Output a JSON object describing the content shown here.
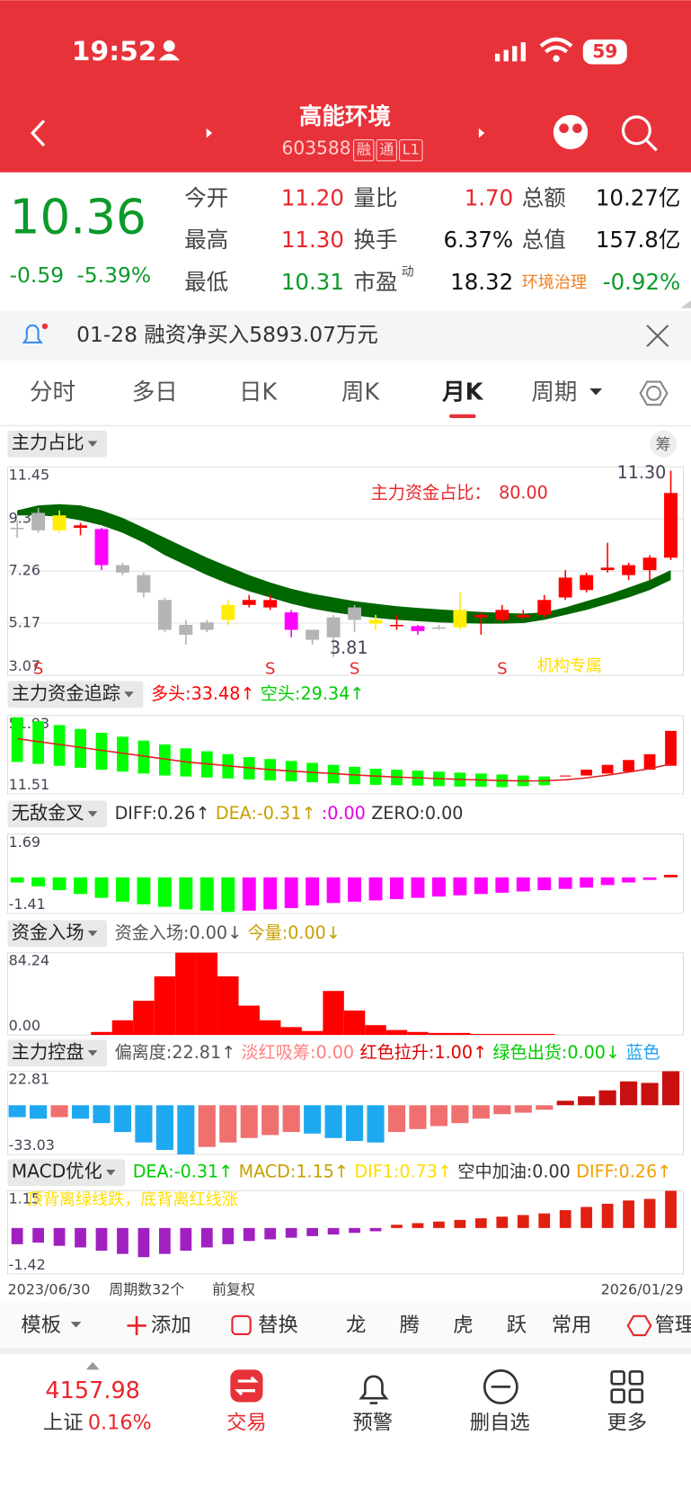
{
  "status_bar": {
    "time": "19:52",
    "battery": "59"
  },
  "header": {
    "title": "高能环境",
    "code": "603588",
    "badges": [
      "融",
      "通",
      "L1"
    ]
  },
  "quote": {
    "price": "10.36",
    "change": "-0.59",
    "change_pct": "-5.39%",
    "fields": [
      {
        "label": "今开",
        "value": "11.20",
        "color": "#e8262c"
      },
      {
        "label": "量比",
        "value": "1.70",
        "color": "#e8262c"
      },
      {
        "label": "总额",
        "value": "10.27亿",
        "color": "#111111"
      },
      {
        "label": "最高",
        "value": "11.30",
        "color": "#e8262c"
      },
      {
        "label": "换手",
        "value": "6.37%",
        "color": "#111111"
      },
      {
        "label": "总值",
        "value": "157.8亿",
        "color": "#111111"
      },
      {
        "label": "最低",
        "value": "10.31",
        "color": "#0a9a2a"
      },
      {
        "label": "市盈",
        "sup": "动",
        "value": "18.32",
        "color": "#111111"
      },
      {
        "label": "环境治理",
        "value": "-0.92%",
        "color": "#0a9a2a"
      }
    ]
  },
  "notice": {
    "text": "01-28 融资净买入5893.07万元"
  },
  "tabs": {
    "items": [
      "分时",
      "多日",
      "日K",
      "周K",
      "月K",
      "周期"
    ],
    "active_index": 4
  },
  "main_chart": {
    "title": "主力占比",
    "badge": "筹",
    "annotation_label": "主力资金占比：",
    "annotation_value": "80.00",
    "max_label": "11.30",
    "min_label": "3.81",
    "tag": "机构专属",
    "ylim": [
      3.07,
      11.45
    ],
    "yticks": [
      11.45,
      9.36,
      7.26,
      5.17,
      3.07
    ],
    "candles": [
      [
        9.0,
        8.95,
        9.3,
        8.6
      ],
      [
        9.6,
        8.9,
        9.8,
        8.8
      ],
      [
        8.9,
        9.5,
        9.7,
        8.8
      ],
      [
        9.1,
        9.0,
        9.2,
        8.7
      ],
      [
        8.95,
        7.5,
        9.0,
        7.3
      ],
      [
        7.5,
        7.2,
        7.6,
        7.1
      ],
      [
        7.1,
        6.4,
        7.2,
        6.2
      ],
      [
        6.1,
        4.9,
        6.2,
        4.8
      ],
      [
        5.1,
        4.7,
        5.3,
        4.3
      ],
      [
        5.2,
        4.9,
        5.3,
        4.8
      ],
      [
        5.3,
        5.9,
        6.1,
        5.1
      ],
      [
        5.9,
        6.1,
        6.3,
        5.8
      ],
      [
        6.1,
        5.8,
        6.3,
        5.7
      ],
      [
        5.6,
        4.9,
        5.7,
        4.6
      ],
      [
        4.9,
        4.5,
        4.9,
        4.3
      ],
      [
        4.6,
        5.4,
        5.5,
        3.81
      ],
      [
        5.3,
        5.8,
        5.9,
        4.8
      ],
      [
        5.3,
        5.15,
        5.5,
        4.9
      ],
      [
        5.1,
        5.05,
        5.5,
        4.9
      ],
      [
        5.05,
        4.85,
        5.1,
        4.7
      ],
      [
        5.0,
        5.0,
        5.1,
        4.9
      ],
      [
        5.0,
        5.7,
        6.4,
        4.9
      ],
      [
        5.4,
        5.5,
        5.6,
        4.7
      ],
      [
        5.3,
        5.7,
        5.9,
        5.2
      ],
      [
        5.4,
        5.5,
        5.7,
        5.3
      ],
      [
        5.5,
        6.1,
        6.3,
        5.4
      ],
      [
        6.2,
        7.0,
        7.3,
        6.1
      ],
      [
        6.5,
        7.1,
        7.2,
        6.4
      ],
      [
        7.3,
        7.4,
        8.4,
        7.2
      ],
      [
        7.1,
        7.5,
        7.6,
        6.9
      ],
      [
        7.3,
        7.8,
        7.9,
        6.9
      ],
      [
        7.8,
        10.4,
        11.3,
        7.7
      ]
    ],
    "candle_colors": [
      "#b4b4b4",
      "#b4b4b4",
      "#ffee00",
      "#ff0000",
      "#ff00ff",
      "#b4b4b4",
      "#b4b4b4",
      "#b4b4b4",
      "#b4b4b4",
      "#b4b4b4",
      "#ffee00",
      "#ff0000",
      "#ff0000",
      "#ff00ff",
      "#b4b4b4",
      "#b4b4b4",
      "#b4b4b4",
      "#ffee00",
      "#ff0000",
      "#ff00ff",
      "#b4b4b4",
      "#ffee00",
      "#ff0000",
      "#ff0000",
      "#ff0000",
      "#ff0000",
      "#ff0000",
      "#ff0000",
      "#ff0000",
      "#ff0000",
      "#ff0000",
      "#ff0000"
    ],
    "band_upper": [
      9.7,
      9.9,
      9.95,
      9.9,
      9.7,
      9.4,
      9.0,
      8.6,
      8.2,
      7.8,
      7.45,
      7.1,
      6.8,
      6.55,
      6.35,
      6.2,
      6.05,
      5.95,
      5.85,
      5.78,
      5.72,
      5.67,
      5.62,
      5.58,
      5.55,
      5.6,
      5.8,
      6.05,
      6.3,
      6.6,
      6.9,
      7.3
    ],
    "band_lower": [
      9.5,
      9.5,
      9.45,
      9.3,
      9.1,
      8.8,
      8.4,
      7.9,
      7.5,
      7.1,
      6.75,
      6.45,
      6.2,
      5.95,
      5.75,
      5.6,
      5.48,
      5.38,
      5.3,
      5.25,
      5.2,
      5.17,
      5.15,
      5.15,
      5.17,
      5.3,
      5.5,
      5.7,
      5.95,
      6.2,
      6.5,
      6.9
    ],
    "band_color": "#006600",
    "signals": [
      {
        "index": 1,
        "label": "S"
      },
      {
        "index": 12,
        "label": "S"
      },
      {
        "index": 16,
        "label": "S"
      },
      {
        "index": 23,
        "label": "S"
      }
    ]
  },
  "panels": [
    {
      "type": "ohlc",
      "name": "主力资金追踪",
      "legend": [
        {
          "text": "多头:33.48↑",
          "color": "#ff0000"
        },
        {
          "text": "空头:29.34↑",
          "color": "#00cc00"
        }
      ],
      "ylim": [
        11.51,
        51.93
      ],
      "yticks": [
        51.93,
        11.51
      ],
      "bars": [
        [
          51,
          28
        ],
        [
          49,
          27
        ],
        [
          47,
          26
        ],
        [
          45,
          25
        ],
        [
          43,
          24
        ],
        [
          41,
          23
        ],
        [
          39,
          22
        ],
        [
          37,
          21
        ],
        [
          35,
          20.5
        ],
        [
          33.5,
          20
        ],
        [
          32,
          19.5
        ],
        [
          30.5,
          19
        ],
        [
          29.5,
          18.5
        ],
        [
          28.5,
          18
        ],
        [
          27.5,
          17.5
        ],
        [
          26.5,
          17
        ],
        [
          25.5,
          16.5
        ],
        [
          24.5,
          16.2
        ],
        [
          24,
          16
        ],
        [
          23.5,
          15.8
        ],
        [
          23,
          15.5
        ],
        [
          22.5,
          15.3
        ],
        [
          22,
          15.2
        ],
        [
          21.5,
          15
        ],
        [
          21,
          15.5
        ],
        [
          20.5,
          16
        ],
        [
          20.5,
          21
        ],
        [
          21,
          24
        ],
        [
          22,
          26.5
        ],
        [
          23,
          29
        ],
        [
          24,
          32
        ],
        [
          26,
          44
        ]
      ],
      "line": [
        40,
        38.5,
        37,
        35.5,
        34,
        32.5,
        31,
        29.5,
        28,
        27,
        26,
        25,
        24,
        23.3,
        22.6,
        22,
        21.3,
        20.7,
        20.2,
        19.8,
        19.4,
        19,
        18.7,
        18.4,
        18.2,
        18.3,
        18.8,
        19.8,
        21.2,
        22.8,
        24.5,
        27
      ],
      "colors": {
        "up": "#ff0000",
        "down": "#00ff00",
        "line": "#e02020"
      }
    },
    {
      "type": "macd",
      "name": "无敌金叉",
      "legend": [
        {
          "text": "DIFF:0.26↑",
          "color": "#333333"
        },
        {
          "text": "DEA:-0.31↑",
          "color": "#c8a000"
        },
        {
          "text": ":0.00",
          "color": "#e000e0"
        },
        {
          "text": "ZERO:0.00",
          "color": "#333333"
        }
      ],
      "ylim": [
        -1.41,
        1.69
      ],
      "yticks": [
        1.69,
        -1.41
      ],
      "values": [
        -0.2,
        -0.35,
        -0.5,
        -0.65,
        -0.8,
        -0.95,
        -1.05,
        -1.15,
        -1.25,
        -1.3,
        -1.35,
        -1.3,
        -1.25,
        -1.2,
        -1.1,
        -1.0,
        -0.95,
        -0.9,
        -0.85,
        -0.8,
        -0.75,
        -0.7,
        -0.65,
        -0.6,
        -0.55,
        -0.5,
        -0.45,
        -0.4,
        -0.3,
        -0.2,
        -0.1,
        0.1
      ],
      "colors": {
        "down": "#00ff00",
        "up": "#ff00ff",
        "pos": "#ff0000"
      }
    },
    {
      "type": "column",
      "name": "资金入场",
      "legend": [
        {
          "text": "资金入场:0.00↓",
          "color": "#555555"
        },
        {
          "text": "今量:0.00↓",
          "color": "#c8a000"
        }
      ],
      "ylim": [
        0,
        84.24
      ],
      "yticks": [
        84.24,
        {
          "value": 0,
          "label": "0.00"
        }
      ],
      "values": [
        0,
        0,
        0,
        0,
        3,
        15,
        35,
        60,
        84.24,
        84.24,
        60,
        30,
        15,
        8,
        4,
        45,
        25,
        10,
        5,
        3,
        2,
        2,
        1,
        1,
        1,
        1,
        0,
        0,
        0,
        0,
        0,
        0
      ],
      "colors": {
        "bar": "#ff0000"
      }
    },
    {
      "type": "ctrl",
      "name": "主力控盘",
      "legend": [
        {
          "text": "偏离度:22.81↑",
          "color": "#555555"
        },
        {
          "text": "淡红吸筹:0.00",
          "color": "#ff8080"
        },
        {
          "text": "红色拉升:1.00↑",
          "color": "#e00000"
        },
        {
          "text": "绿色出货:0.00↓",
          "color": "#00cc00"
        },
        {
          "text": "蓝色",
          "color": "#1ea0f0"
        }
      ],
      "ylim": [
        -33.03,
        22.81
      ],
      "yticks": [
        22.81,
        -33.03
      ],
      "values": [
        -8,
        -9,
        -8,
        -9,
        -12,
        -18,
        -25,
        -30,
        -33,
        -28,
        -25,
        -22,
        -20,
        -18,
        -19,
        -22,
        -24,
        -25,
        -18,
        -16,
        -14,
        -12,
        -9,
        -6,
        -5,
        -3,
        3,
        6,
        10,
        16,
        15,
        22.81
      ],
      "colors": {
        "neg_down": "#1ea8f0",
        "neg_up": "#f07070",
        "pos": "#c81010"
      }
    },
    {
      "type": "macd2",
      "name": "MACD优化",
      "legend": [
        {
          "text": "DEA:-0.31↑",
          "color": "#00cc00"
        },
        {
          "text": "MACD:1.15↑",
          "color": "#c8a000"
        },
        {
          "text": "DIF1:0.73↑",
          "color": "#ffdd00"
        },
        {
          "text": "空中加油:0.00",
          "color": "#333333"
        },
        {
          "text": "DIFF:0.26↑",
          "color": "#f0a000"
        }
      ],
      "note": "顶背离绿线跌，底背离红线涨",
      "ylim": [
        -1.42,
        1.15
      ],
      "yticks": [
        1.15,
        -1.42
      ],
      "values": [
        -0.5,
        -0.45,
        -0.55,
        -0.6,
        -0.7,
        -0.8,
        -0.9,
        -0.8,
        -0.7,
        -0.6,
        -0.5,
        -0.4,
        -0.35,
        -0.3,
        -0.25,
        -0.2,
        -0.15,
        -0.1,
        0.1,
        0.15,
        0.2,
        0.25,
        0.3,
        0.35,
        0.4,
        0.45,
        0.55,
        0.65,
        0.75,
        0.85,
        0.9,
        1.15
      ],
      "colors": {
        "neg": "#a020c0",
        "pos": "#e02010"
      }
    }
  ],
  "footer": {
    "start": "2023/06/30",
    "periods": "周期数32个",
    "adjust": "前复权",
    "end": "2026/01/29"
  },
  "toolbar": [
    "模板",
    "添加",
    "替换",
    "龙",
    "腾",
    "虎",
    "跃",
    "常用",
    "管理"
  ],
  "bottom_nav": {
    "index_value": "4157.98",
    "index_name": "上证",
    "index_change": "0.16%",
    "items": [
      "交易",
      "预警",
      "删自选",
      "更多"
    ]
  }
}
